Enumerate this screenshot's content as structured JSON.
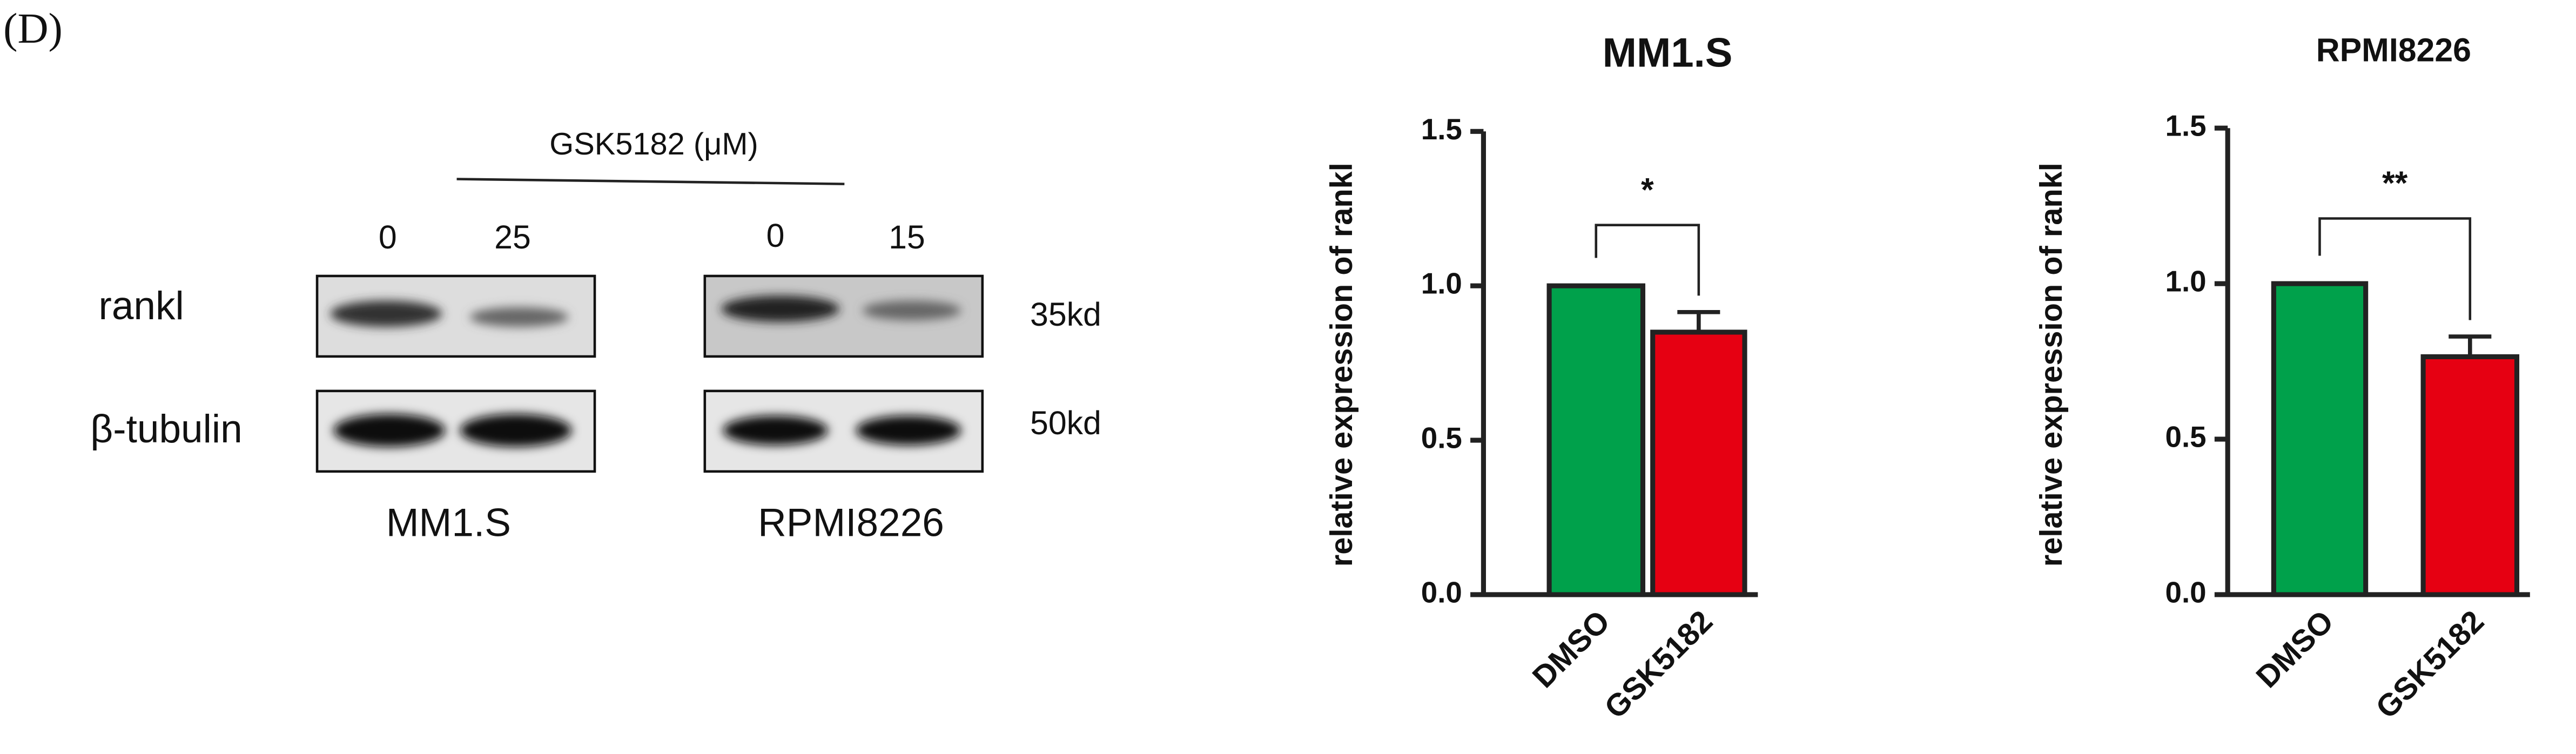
{
  "panel_label": "(D)",
  "blot": {
    "treatment": "GSK5182 (μM)",
    "doses": [
      "0",
      "25",
      "0",
      "15"
    ],
    "proteins": [
      "rankl",
      "β-tubulin"
    ],
    "sizes": [
      "35kd",
      "50kd"
    ],
    "cell_lines": [
      "MM1.S",
      "RPMI8226"
    ]
  },
  "chart_data": [
    {
      "type": "bar",
      "title": "MM1.S",
      "y_label": "relative expression of rankl",
      "categories": [
        "DMSO",
        "GSK5182"
      ],
      "values": [
        1.0,
        0.85
      ],
      "errors": [
        null,
        0.065
      ],
      "colors": [
        "#00a14b",
        "#e60012"
      ],
      "ylim": [
        0,
        1.5
      ],
      "yticks": [
        {
          "value": 0,
          "label": "0.0"
        },
        {
          "value": 0.5,
          "label": "0.5"
        },
        {
          "value": 1,
          "label": "1.0"
        },
        {
          "value": 1.5,
          "label": "1.5"
        }
      ],
      "significance": "*"
    },
    {
      "type": "bar",
      "title": "RPMI8226",
      "y_label": "relative expression of rankl",
      "categories": [
        "DMSO",
        "GSK5182"
      ],
      "values": [
        1.0,
        0.765
      ],
      "errors": [
        null,
        0.065
      ],
      "colors": [
        "#00a14b",
        "#e60012"
      ],
      "ylim": [
        0,
        1.5
      ],
      "yticks": [
        {
          "value": 0,
          "label": "0.0"
        },
        {
          "value": 0.5,
          "label": "0.5"
        },
        {
          "value": 1,
          "label": "1.0"
        },
        {
          "value": 1.5,
          "label": "1.5"
        }
      ],
      "significance": "**"
    }
  ]
}
